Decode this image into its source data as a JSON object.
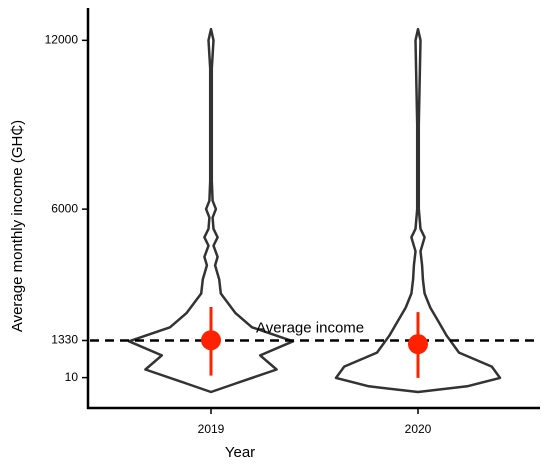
{
  "chart_data": {
    "type": "violin",
    "x_label": "Year",
    "y_label": "Average monthly income (GH₵)",
    "categories": [
      "2019",
      "2020"
    ],
    "ylim": [
      -1070,
      13150
    ],
    "yticks": [
      10,
      1330,
      6000,
      12000
    ],
    "violin_color": "#333333",
    "mean_color": "#ff2200",
    "violins": [
      {
        "y": [
          -500,
          -200,
          300,
          800,
          1300,
          1800,
          2300,
          3000,
          3500,
          4000,
          4300,
          4700,
          5000,
          5300,
          5700,
          6000,
          6300,
          7000,
          9000,
          11000,
          12000,
          12400
        ],
        "density": [
          0,
          0.3,
          0.8,
          0.6,
          1.0,
          0.5,
          0.3,
          0.12,
          0.1,
          0.05,
          0.08,
          0.03,
          0.08,
          0.03,
          0.02,
          0.06,
          0.02,
          0.01,
          0.01,
          0.01,
          0.03,
          0
        ]
      },
      {
        "y": [
          -500,
          -300,
          0,
          400,
          900,
          1500,
          2000,
          2500,
          3000,
          3500,
          4000,
          4500,
          5000,
          5300,
          6000,
          9000,
          12000,
          12400
        ],
        "density": [
          0,
          0.6,
          1.0,
          0.9,
          0.5,
          0.35,
          0.25,
          0.15,
          0.08,
          0.06,
          0.05,
          0.03,
          0.08,
          0.03,
          0.01,
          0.01,
          0.03,
          0
        ]
      }
    ],
    "means": [
      1340,
      1200
    ],
    "intervals": [
      [
        80,
        2520
      ],
      [
        0,
        2340
      ]
    ],
    "reference_line": {
      "value": 1330,
      "label": "Average income"
    }
  }
}
